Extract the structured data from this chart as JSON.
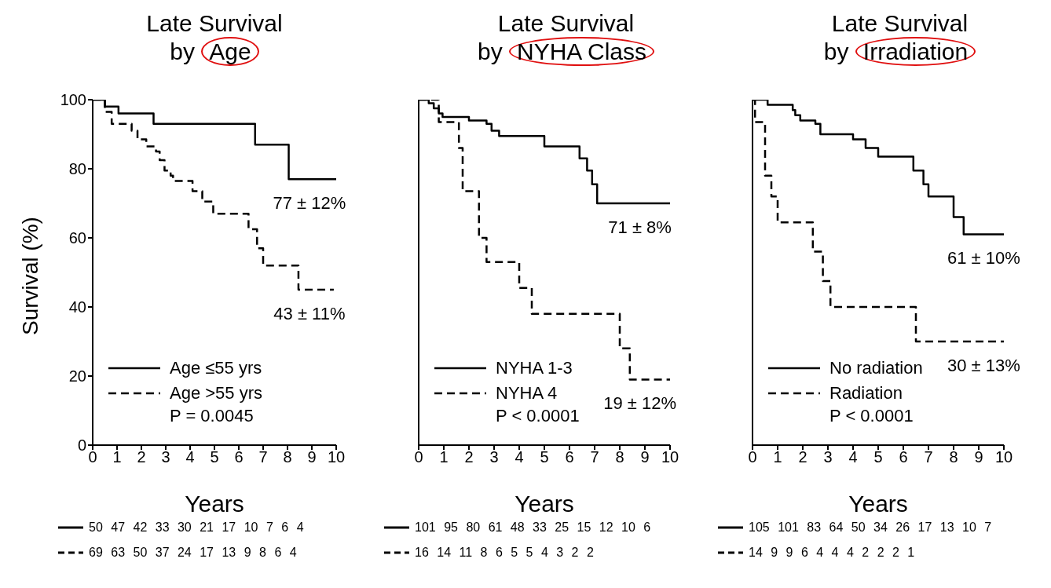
{
  "chart_data": [
    {
      "type": "step",
      "title": "Late Survival\nby Age",
      "xlabel": "Years",
      "ylabel": "Survival (%)",
      "xlim": [
        0,
        10
      ],
      "xticks": [
        0,
        1,
        2,
        3,
        4,
        5,
        6,
        7,
        8,
        9,
        10
      ],
      "ylim": [
        0,
        100
      ],
      "yticks": [
        0,
        20,
        40,
        60,
        80,
        100
      ],
      "legend": "bottom left",
      "grid": false,
      "marker": "none",
      "series": [
        {
          "name": "Age ≤55 yrs",
          "color": "#000000",
          "line_style": "solid",
          "x": [
            0,
            0.5,
            1.06,
            2.5,
            6.67,
            8.05,
            10
          ],
          "values": [
            100,
            98,
            96,
            93,
            87,
            77,
            77
          ]
        },
        {
          "name": "Age >55 yrs",
          "color": "#000000",
          "line_style": "dashed",
          "x": [
            0,
            0.5,
            0.78,
            1.6,
            1.84,
            2.2,
            2.6,
            2.75,
            2.95,
            3.2,
            3.3,
            4.1,
            4.5,
            4.95,
            6.4,
            6.75,
            7.0,
            8.45,
            9.9
          ],
          "values": [
            100,
            96.5,
            93,
            91,
            88.5,
            86.5,
            85,
            82.5,
            79.5,
            78,
            76.5,
            73.5,
            70.5,
            67,
            62.5,
            57,
            52,
            45,
            45
          ]
        }
      ],
      "annotations": [
        "P = 0.0045",
        "50 47 42 33 30 21 17 10 7 6 4",
        "69 63 50 37 24 17 13 9 8 6 4",
        {
          "text": "77 ± 12%",
          "x": 8.9,
          "y": 77
        },
        {
          "text": "43 ± 11%",
          "x": 8.9,
          "y": 45
        }
      ]
    },
    {
      "type": "step",
      "title": "Late Survival\nby NYHA Class",
      "xlabel": "Years",
      "xlim": [
        0,
        10
      ],
      "xticks": [
        0,
        1,
        2,
        3,
        4,
        5,
        6,
        7,
        8,
        9,
        10
      ],
      "ylim": [
        0,
        100
      ],
      "yticks": [
        0,
        20,
        40,
        60,
        80,
        100
      ],
      "tick_labels": "x",
      "legend": "bottom left",
      "grid": false,
      "marker": "none",
      "series": [
        {
          "name": "NYHA 1-3",
          "color": "#000000",
          "line_style": "solid",
          "x": [
            0,
            0.4,
            0.6,
            0.8,
            0.95,
            2.0,
            2.7,
            2.9,
            3.2,
            5.0,
            6.4,
            6.7,
            6.9,
            7.1,
            10
          ],
          "values": [
            100,
            99,
            97.5,
            96,
            95,
            94,
            93,
            91,
            89.5,
            86.5,
            83,
            79.5,
            75.5,
            70,
            70
          ]
        },
        {
          "name": "NYHA 4",
          "color": "#000000",
          "line_style": "dashed",
          "x": [
            0,
            0.8,
            1.6,
            1.75,
            2.4,
            2.7,
            4.0,
            4.5,
            8.0,
            8.4,
            10
          ],
          "values": [
            100,
            93.5,
            86,
            73.5,
            60,
            53,
            45.5,
            38,
            28,
            19,
            19
          ]
        }
      ],
      "annotations": [
        "P < 0.0001",
        "101 95 80 61 48 33 25 15 12 10 6",
        "16 14 11 8 6 5 5 4 3 2 2",
        {
          "text": "71 ± 8%",
          "x": 8.8,
          "y": 70
        },
        {
          "text": "19 ± 12%",
          "x": 8.8,
          "y": 19
        }
      ]
    },
    {
      "type": "step",
      "title": "Late Survival\nby Irradiation",
      "xlabel": "Years",
      "xlim": [
        0,
        10
      ],
      "xticks": [
        0,
        1,
        2,
        3,
        4,
        5,
        6,
        7,
        8,
        9,
        10
      ],
      "ylim": [
        0,
        100
      ],
      "yticks": [
        0,
        20,
        40,
        60,
        80,
        100
      ],
      "tick_labels": "x",
      "legend": "bottom left",
      "grid": false,
      "marker": "none",
      "series": [
        {
          "name": "No radiation",
          "color": "#000000",
          "line_style": "solid",
          "x": [
            0,
            0.6,
            1.6,
            1.7,
            1.9,
            2.5,
            2.7,
            4.0,
            4.5,
            5.0,
            6.4,
            6.8,
            7.0,
            8.0,
            8.4,
            10
          ],
          "values": [
            100,
            98.5,
            97,
            95.5,
            94,
            93,
            90,
            88.5,
            86,
            83.5,
            79.5,
            75.5,
            72,
            66,
            61,
            61
          ]
        },
        {
          "name": "Radiation",
          "color": "#000000",
          "line_style": "dashed",
          "x": [
            0,
            0.1,
            0.5,
            0.75,
            1.0,
            2.4,
            2.8,
            3.1,
            6.5,
            10
          ],
          "values": [
            100,
            93.5,
            78,
            72,
            64.5,
            56,
            47.5,
            40,
            30,
            30
          ]
        }
      ],
      "annotations": [
        "P < 0.0001",
        "105 101 83 64 50 34 26 17 13 10 7",
        "14 9 9 6 4 4 4 2 2 2 1",
        {
          "text": "61 ± 10%",
          "x": 9.2,
          "y": 61
        },
        {
          "text": "30 ± 13%",
          "x": 9.2,
          "y": 30
        }
      ]
    }
  ]
}
